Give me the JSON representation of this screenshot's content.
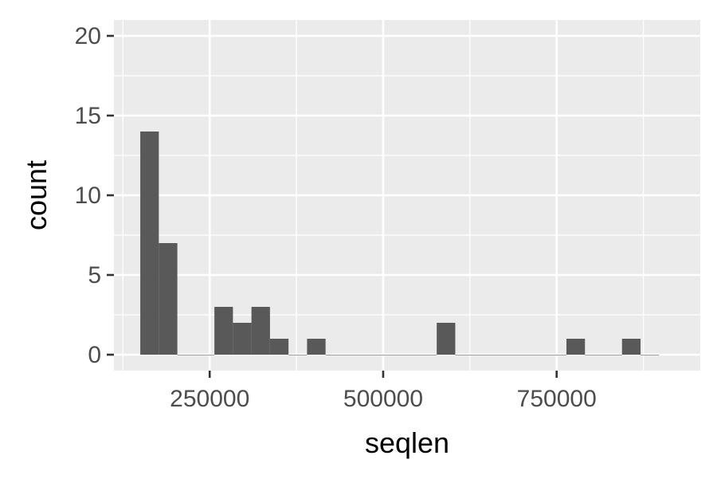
{
  "chart_data": {
    "type": "bar",
    "subtype": "histogram",
    "title": "",
    "xlabel": "seqlen",
    "ylabel": "count",
    "xlim": [
      112000,
      957000
    ],
    "ylim": [
      -1,
      21
    ],
    "x_ticks": [
      250000,
      500000,
      750000
    ],
    "x_tick_labels": [
      "250000",
      "500000",
      "750000"
    ],
    "y_ticks": [
      0,
      5,
      10,
      15,
      20
    ],
    "y_tick_labels": [
      "0",
      "5",
      "10",
      "15",
      "20"
    ],
    "bin_width": 26700,
    "bins_start": 150000,
    "bins_end": 897000,
    "counts": [
      14,
      7,
      0,
      0,
      3,
      2,
      3,
      1,
      0,
      1,
      0,
      0,
      0,
      0,
      0,
      0,
      2,
      0,
      0,
      0,
      0,
      0,
      0,
      1,
      0,
      0,
      1,
      0
    ],
    "grid": true,
    "legend": "none",
    "colors": {
      "bar_fill": "#595959",
      "panel_background": "#ebebeb",
      "grid": "#ffffff",
      "tick_text": "#4d4d4d",
      "axis_title": "#000000",
      "tick_mark": "#333333"
    }
  }
}
